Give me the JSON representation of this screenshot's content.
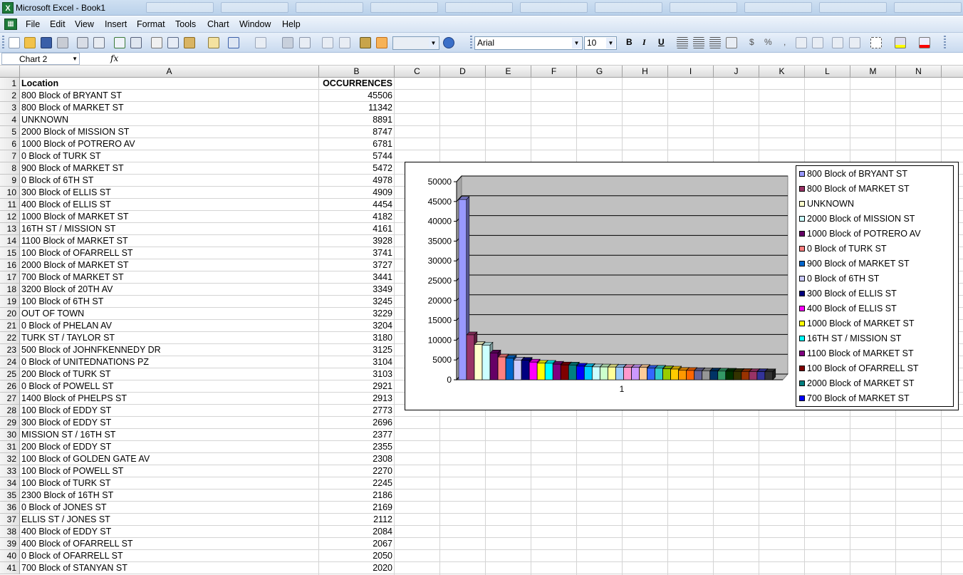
{
  "window": {
    "title": "Microsoft Excel - Book1"
  },
  "menu": [
    "File",
    "Edit",
    "View",
    "Insert",
    "Format",
    "Tools",
    "Chart",
    "Window",
    "Help"
  ],
  "toolbar": {
    "font_name": "Arial",
    "font_size": "10"
  },
  "formula_bar": {
    "name_box": "Chart 2",
    "fx_label": "fx",
    "formula": ""
  },
  "columns": [
    "A",
    "B",
    "C",
    "D",
    "E",
    "F",
    "G",
    "H",
    "I",
    "J",
    "K",
    "L",
    "M",
    "N"
  ],
  "sheet": {
    "header": {
      "location": "Location",
      "occurrences": "OCCURRENCES"
    },
    "rows": [
      {
        "location": "800 Block of BRYANT ST",
        "occurrences": 45506
      },
      {
        "location": "800 Block of MARKET ST",
        "occurrences": 11342
      },
      {
        "location": "UNKNOWN",
        "occurrences": 8891
      },
      {
        "location": "2000 Block of MISSION ST",
        "occurrences": 8747
      },
      {
        "location": "1000 Block of POTRERO AV",
        "occurrences": 6781
      },
      {
        "location": "0 Block of TURK ST",
        "occurrences": 5744
      },
      {
        "location": "900 Block of MARKET ST",
        "occurrences": 5472
      },
      {
        "location": "0 Block of 6TH ST",
        "occurrences": 4978
      },
      {
        "location": "300 Block of ELLIS ST",
        "occurrences": 4909
      },
      {
        "location": "400 Block of ELLIS ST",
        "occurrences": 4454
      },
      {
        "location": "1000 Block of MARKET ST",
        "occurrences": 4182
      },
      {
        "location": "16TH ST / MISSION ST",
        "occurrences": 4161
      },
      {
        "location": "1100 Block of MARKET ST",
        "occurrences": 3928
      },
      {
        "location": "100 Block of OFARRELL ST",
        "occurrences": 3741
      },
      {
        "location": "2000 Block of MARKET ST",
        "occurrences": 3727
      },
      {
        "location": "700 Block of MARKET ST",
        "occurrences": 3441
      },
      {
        "location": "3200 Block of 20TH AV",
        "occurrences": 3349
      },
      {
        "location": "100 Block of 6TH ST",
        "occurrences": 3245
      },
      {
        "location": "OUT OF TOWN",
        "occurrences": 3229
      },
      {
        "location": "0 Block of PHELAN AV",
        "occurrences": 3204
      },
      {
        "location": "TURK ST / TAYLOR ST",
        "occurrences": 3180
      },
      {
        "location": "500 Block of JOHNFKENNEDY DR",
        "occurrences": 3125
      },
      {
        "location": "0 Block of UNITEDNATIONS PZ",
        "occurrences": 3104
      },
      {
        "location": "200 Block of TURK ST",
        "occurrences": 3103
      },
      {
        "location": "0 Block of POWELL ST",
        "occurrences": 2921
      },
      {
        "location": "1400 Block of PHELPS ST",
        "occurrences": 2913
      },
      {
        "location": "100 Block of EDDY ST",
        "occurrences": 2773
      },
      {
        "location": "300 Block of EDDY ST",
        "occurrences": 2696
      },
      {
        "location": "MISSION ST / 16TH ST",
        "occurrences": 2377
      },
      {
        "location": "200 Block of EDDY ST",
        "occurrences": 2355
      },
      {
        "location": "100 Block of GOLDEN GATE AV",
        "occurrences": 2308
      },
      {
        "location": "100 Block of POWELL ST",
        "occurrences": 2270
      },
      {
        "location": "100 Block of TURK ST",
        "occurrences": 2245
      },
      {
        "location": "2300 Block of 16TH ST",
        "occurrences": 2186
      },
      {
        "location": "0 Block of JONES ST",
        "occurrences": 2169
      },
      {
        "location": "ELLIS ST / JONES ST",
        "occurrences": 2112
      },
      {
        "location": "400 Block of EDDY ST",
        "occurrences": 2084
      },
      {
        "location": "400 Block of OFARRELL ST",
        "occurrences": 2067
      },
      {
        "location": "0 Block of OFARRELL ST",
        "occurrences": 2050
      },
      {
        "location": "700 Block of STANYAN ST",
        "occurrences": 2020
      }
    ]
  },
  "chart_data": {
    "type": "bar",
    "title": "",
    "xlabel": "",
    "ylabel": "",
    "categories": [
      "1"
    ],
    "ylim": [
      0,
      50000
    ],
    "yticks": [
      0,
      5000,
      10000,
      15000,
      20000,
      25000,
      30000,
      35000,
      40000,
      45000,
      50000
    ],
    "grid": true,
    "legend_position": "right",
    "series": [
      {
        "name": "800 Block of BRYANT ST",
        "values": [
          45506
        ],
        "color": "#9999ff"
      },
      {
        "name": "800 Block of MARKET ST",
        "values": [
          11342
        ],
        "color": "#993366"
      },
      {
        "name": "UNKNOWN",
        "values": [
          8891
        ],
        "color": "#ffffcc"
      },
      {
        "name": "2000 Block of MISSION ST",
        "values": [
          8747
        ],
        "color": "#ccffff"
      },
      {
        "name": "1000 Block of POTRERO AV",
        "values": [
          6781
        ],
        "color": "#660066"
      },
      {
        "name": "0 Block of TURK ST",
        "values": [
          5744
        ],
        "color": "#ff8080"
      },
      {
        "name": "900 Block of MARKET ST",
        "values": [
          5472
        ],
        "color": "#0066cc"
      },
      {
        "name": "0 Block of 6TH ST",
        "values": [
          4978
        ],
        "color": "#ccccff"
      },
      {
        "name": "300 Block of ELLIS ST",
        "values": [
          4909
        ],
        "color": "#000080"
      },
      {
        "name": "400 Block of ELLIS ST",
        "values": [
          4454
        ],
        "color": "#ff00ff"
      },
      {
        "name": "1000 Block of MARKET ST",
        "values": [
          4182
        ],
        "color": "#ffff00"
      },
      {
        "name": "16TH ST / MISSION ST",
        "values": [
          4161
        ],
        "color": "#00ffff"
      },
      {
        "name": "1100 Block of MARKET ST",
        "values": [
          3928
        ],
        "color": "#800080"
      },
      {
        "name": "100 Block of OFARRELL ST",
        "values": [
          3741
        ],
        "color": "#800000"
      },
      {
        "name": "2000 Block of MARKET ST",
        "values": [
          3727
        ],
        "color": "#008080"
      },
      {
        "name": "700 Block of MARKET ST",
        "values": [
          3441
        ],
        "color": "#0000ff"
      },
      {
        "name": "3200 Block of 20TH AV",
        "values": [
          3349
        ],
        "color": "#00ccff"
      },
      {
        "name": "100 Block of 6TH ST",
        "values": [
          3245
        ],
        "color": "#ccffff"
      },
      {
        "name": "OUT OF TOWN",
        "values": [
          3229
        ],
        "color": "#ccffcc"
      },
      {
        "name": "0 Block of PHELAN AV",
        "values": [
          3204
        ],
        "color": "#ffff99"
      },
      {
        "name": "TURK ST / TAYLOR ST",
        "values": [
          3180
        ],
        "color": "#99ccff"
      },
      {
        "name": "500 Block of JOHNFKENNEDY DR",
        "values": [
          3125
        ],
        "color": "#ff99cc"
      },
      {
        "name": "0 Block of UNITEDNATIONS PZ",
        "values": [
          3104
        ],
        "color": "#cc99ff"
      },
      {
        "name": "200 Block of TURK ST",
        "values": [
          3103
        ],
        "color": "#ffcc99"
      },
      {
        "name": "0 Block of POWELL ST",
        "values": [
          2921
        ],
        "color": "#3366ff"
      },
      {
        "name": "1400 Block of PHELPS ST",
        "values": [
          2913
        ],
        "color": "#33cccc"
      },
      {
        "name": "100 Block of EDDY ST",
        "values": [
          2773
        ],
        "color": "#99cc00"
      },
      {
        "name": "300 Block of EDDY ST",
        "values": [
          2696
        ],
        "color": "#ffcc00"
      },
      {
        "name": "MISSION ST / 16TH ST",
        "values": [
          2377
        ],
        "color": "#ff9900"
      },
      {
        "name": "200 Block of EDDY ST",
        "values": [
          2355
        ],
        "color": "#ff6600"
      },
      {
        "name": "100 Block of GOLDEN GATE AV",
        "values": [
          2308
        ],
        "color": "#666699"
      },
      {
        "name": "100 Block of POWELL ST",
        "values": [
          2270
        ],
        "color": "#969696"
      },
      {
        "name": "100 Block of TURK ST",
        "values": [
          2245
        ],
        "color": "#003366"
      },
      {
        "name": "2300 Block of 16TH ST",
        "values": [
          2186
        ],
        "color": "#339966"
      },
      {
        "name": "0 Block of JONES ST",
        "values": [
          2169
        ],
        "color": "#003300"
      },
      {
        "name": "ELLIS ST / JONES ST",
        "values": [
          2112
        ],
        "color": "#333300"
      },
      {
        "name": "400 Block of EDDY ST",
        "values": [
          2084
        ],
        "color": "#993300"
      },
      {
        "name": "400 Block of OFARRELL ST",
        "values": [
          2067
        ],
        "color": "#993366"
      },
      {
        "name": "0 Block of OFARRELL ST",
        "values": [
          2050
        ],
        "color": "#333399"
      },
      {
        "name": "700 Block of STANYAN ST",
        "values": [
          2020
        ],
        "color": "#333333"
      }
    ],
    "legend_visible_count": 16
  }
}
